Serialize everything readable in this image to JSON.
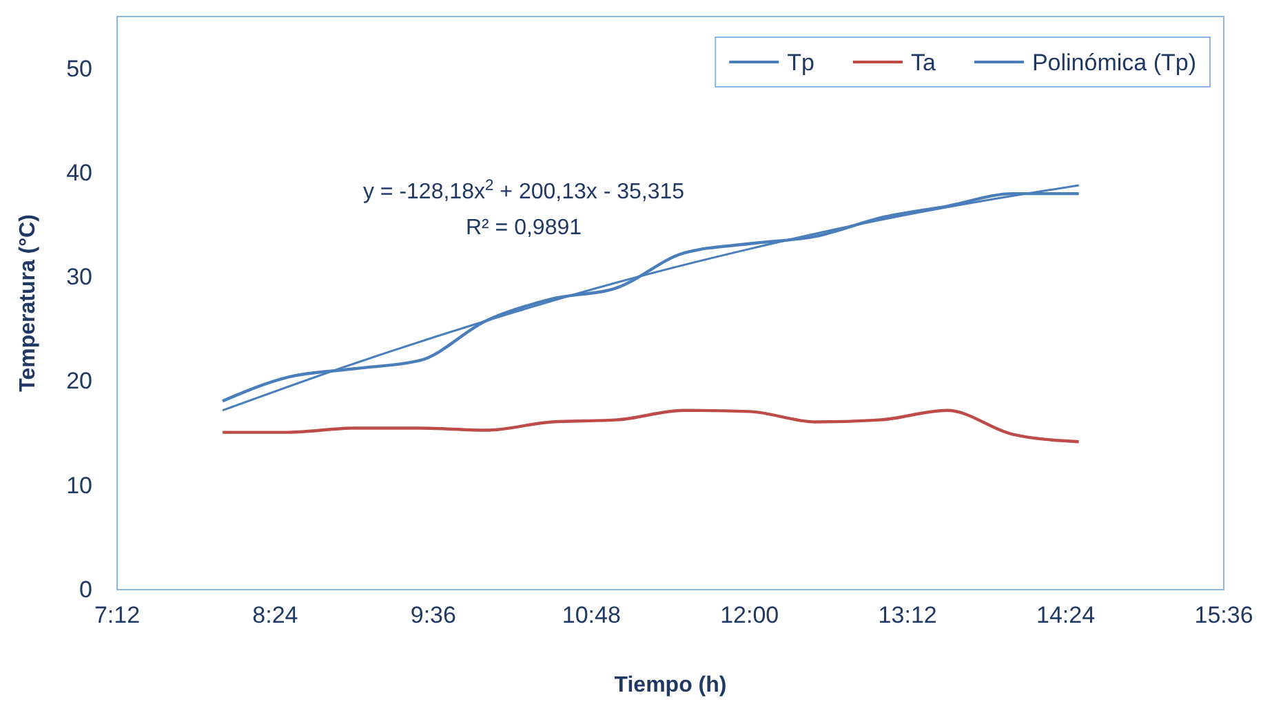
{
  "chart_data": {
    "type": "line",
    "xlabel": "Tiempo (h)",
    "ylabel": "Temperatura (°C)",
    "xlim": [
      7.2,
      15.6
    ],
    "xticks": [
      {
        "value": 7.2,
        "label": "7:12"
      },
      {
        "value": 8.4,
        "label": "8:24"
      },
      {
        "value": 9.6,
        "label": "9:36"
      },
      {
        "value": 10.8,
        "label": "10:48"
      },
      {
        "value": 12,
        "label": "12:00"
      },
      {
        "value": 13.2,
        "label": "13:12"
      },
      {
        "value": 14.4,
        "label": "14:24"
      },
      {
        "value": 15.6,
        "label": "15:36"
      }
    ],
    "ylim": [
      0,
      55
    ],
    "yticks": [
      0,
      10,
      20,
      30,
      40,
      50
    ],
    "x": [
      8,
      8.5,
      9,
      9.5,
      10,
      10.5,
      11,
      11.5,
      12,
      12.5,
      13,
      13.5,
      14,
      14.5
    ],
    "series": [
      {
        "name": "Tp",
        "color": "#4a7ebb",
        "values": [
          18.1,
          20.4,
          21.2,
          22,
          25.8,
          27.9,
          29,
          32.3,
          33.2,
          33.9,
          35.7,
          36.8,
          38,
          38
        ]
      },
      {
        "name": "Ta",
        "color": "#be4b48",
        "values": [
          15.1,
          15.1,
          15.5,
          15.5,
          15.3,
          16.1,
          16.3,
          17.2,
          17.1,
          16.1,
          16.3,
          17.2,
          14.9,
          14.2
        ]
      },
      {
        "name": "Polinómica (Tp)",
        "color": "#4a7ebb",
        "x": [
          8,
          9,
          10,
          11,
          12,
          13,
          14,
          14.5
        ],
        "values": [
          17.2,
          21.7,
          25.8,
          29.5,
          32.7,
          35.5,
          37.8,
          38.8
        ]
      }
    ],
    "annotations": [
      "y = -128,18x$^{2}$ + 200,13x - 35,315",
      "R² = 0,9891"
    ],
    "legend": "top right",
    "grid": false
  }
}
